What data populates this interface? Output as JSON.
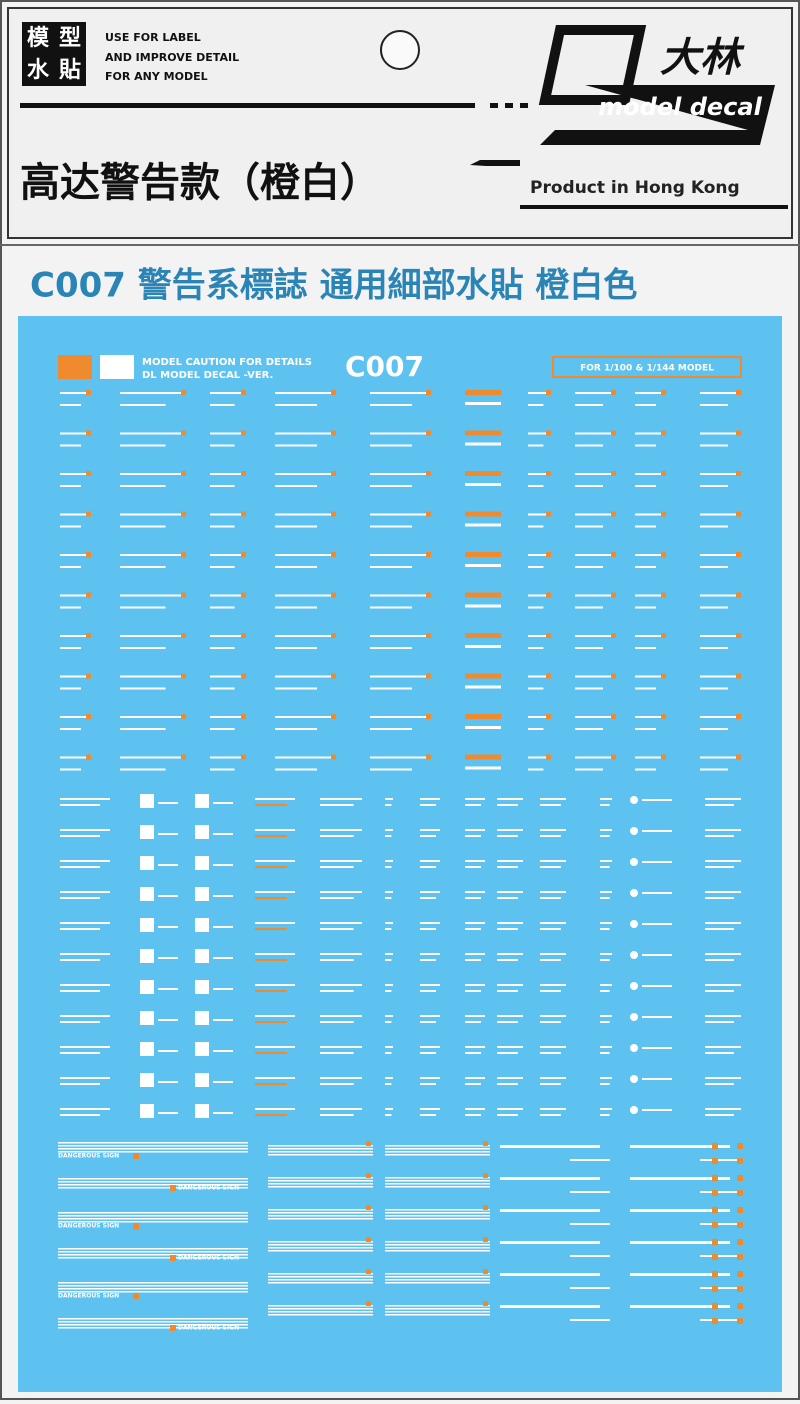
{
  "badge": {
    "chars": [
      "模",
      "型",
      "水",
      "貼"
    ]
  },
  "header": {
    "lines": [
      "USE FOR LABEL",
      "AND IMPROVE DETAIL",
      "FOR ANY MODEL"
    ],
    "logo_cn": "大林",
    "logo_en": "model decal",
    "title": "高达警告款（橙白）",
    "origin": "Product in Hong Kong"
  },
  "subtitle": "C007 警告系標誌 通用細部水貼 橙白色",
  "sheet": {
    "line1": "MODEL CAUTION FOR DETAILS",
    "line2": "DL MODEL DECAL -VER.",
    "code": "C007",
    "scale": "FOR 1/100 & 1/144 MODEL",
    "sign": "DANGEROUS SIGN"
  }
}
